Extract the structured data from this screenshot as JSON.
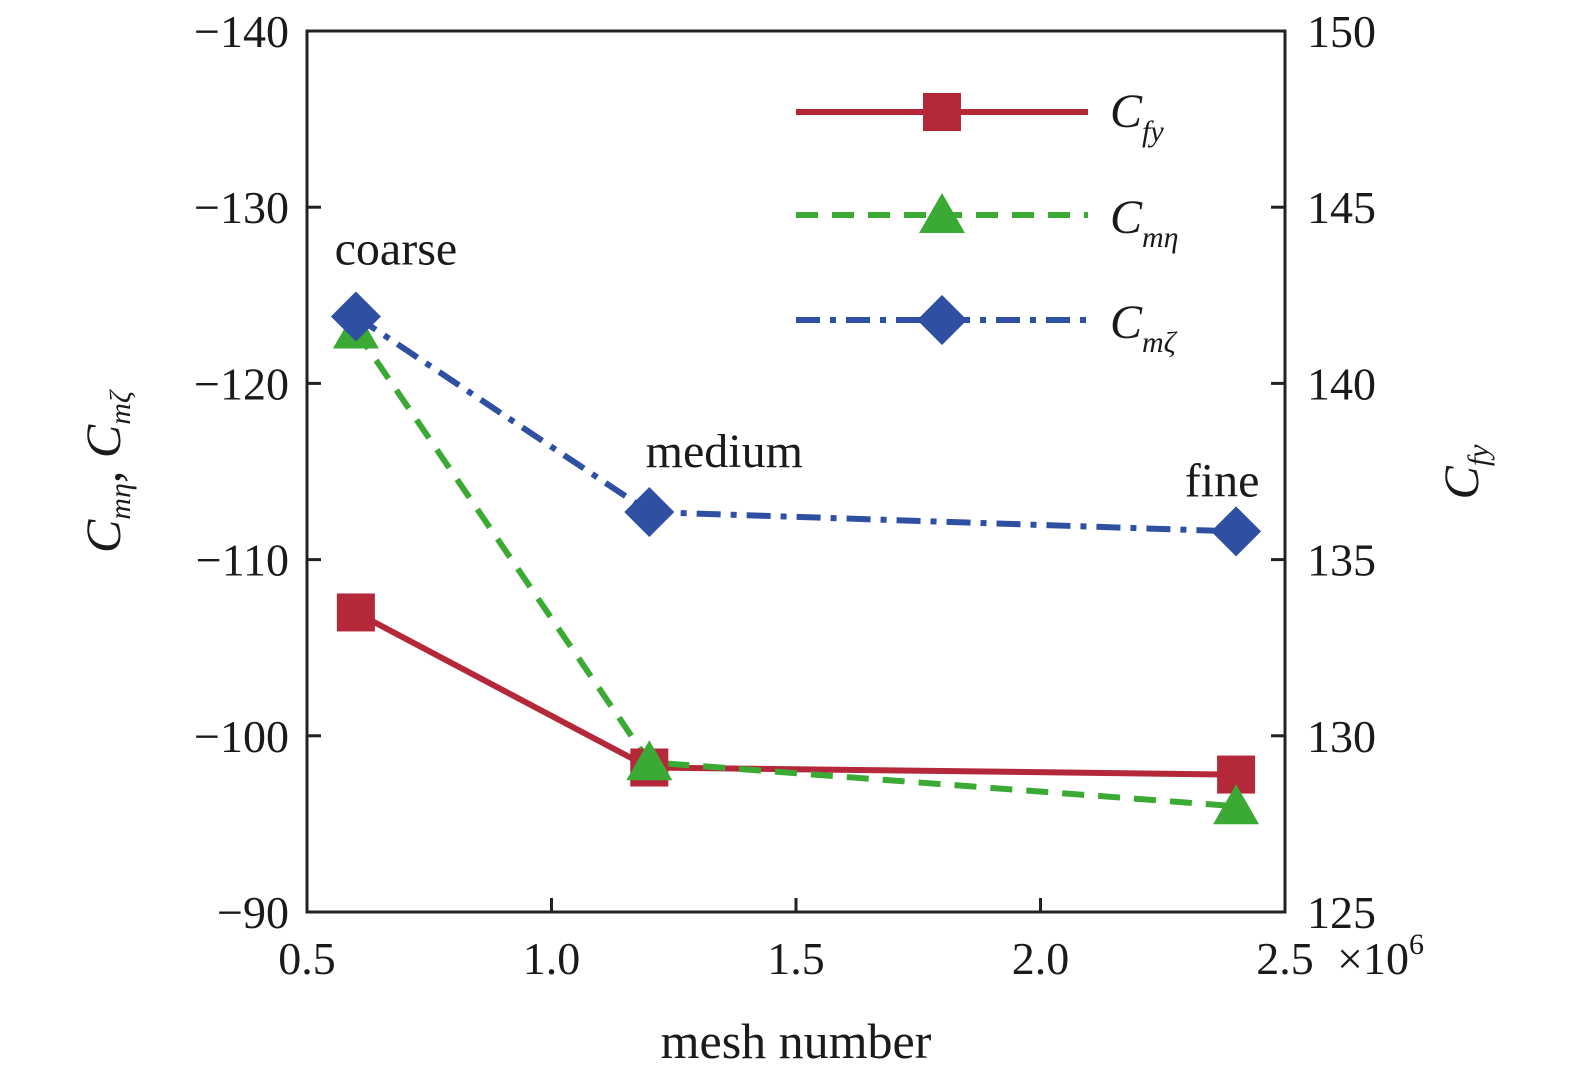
{
  "chart_data": {
    "type": "line",
    "xlabel": "mesh number",
    "x_multiplier": "×10",
    "x_multiplier_exp": "6",
    "xlim": [
      0.5,
      2.5
    ],
    "xticks": [
      "0.5",
      "1.0",
      "1.5",
      "2.0",
      "2.5"
    ],
    "ylim_left": [
      -90,
      -140
    ],
    "yticks_left": [
      "−90",
      "−100",
      "−110",
      "−120",
      "−130",
      "−140"
    ],
    "ylabel_left": {
      "C1": "C",
      "s1": "mη",
      "sep": ", ",
      "C2": "C",
      "s2": "mζ"
    },
    "ylim_right": [
      125,
      150
    ],
    "yticks_right": [
      "125",
      "130",
      "135",
      "140",
      "145",
      "150"
    ],
    "ylabel_right": {
      "C": "C",
      "sub": "fy"
    },
    "x": [
      0.6,
      1.2,
      2.4
    ],
    "annotations": [
      "coarse",
      "medium",
      "fine"
    ],
    "legend_position": "top-right",
    "series": [
      {
        "key": "cfy",
        "name": "C",
        "sub": "fy",
        "axis": "right",
        "marker": "square",
        "line": "solid",
        "color": "#b5283a",
        "values": [
          133.5,
          129.1,
          128.9
        ]
      },
      {
        "key": "cmeta",
        "name": "C",
        "sub": "mη",
        "axis": "left",
        "marker": "triangle",
        "line": "dashed",
        "color": "#3aaa35",
        "values": [
          -123,
          -98.5,
          -96
        ]
      },
      {
        "key": "cmzeta",
        "name": "C",
        "sub": "mζ",
        "axis": "left",
        "marker": "diamond",
        "line": "dashdot",
        "color": "#2f4fa3",
        "values": [
          -123.8,
          -112.7,
          -111.6
        ]
      }
    ]
  }
}
